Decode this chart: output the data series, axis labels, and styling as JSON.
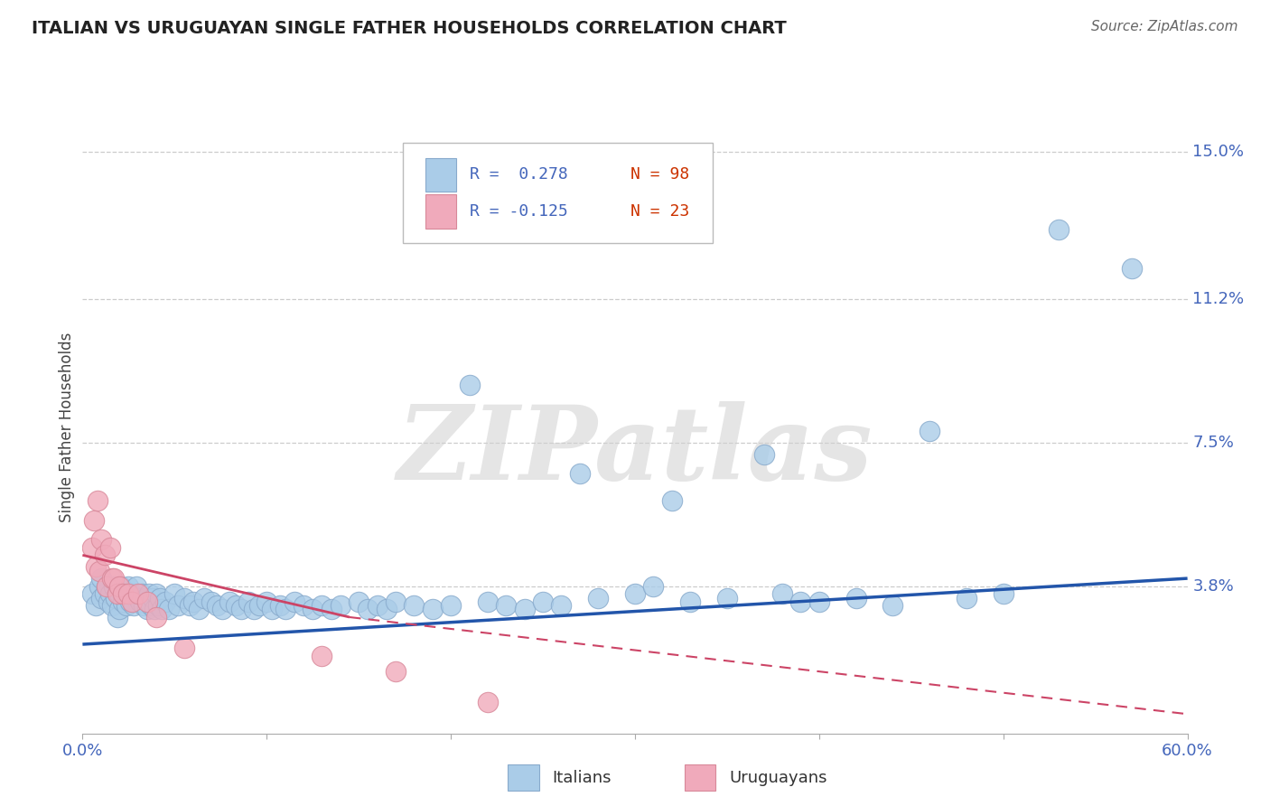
{
  "title": "ITALIAN VS URUGUAYAN SINGLE FATHER HOUSEHOLDS CORRELATION CHART",
  "source": "Source: ZipAtlas.com",
  "ylabel": "Single Father Households",
  "xlim": [
    0.0,
    0.6
  ],
  "ylim": [
    0.0,
    0.158
  ],
  "yticks": [
    0.038,
    0.075,
    0.112,
    0.15
  ],
  "ytick_labels": [
    "3.8%",
    "7.5%",
    "11.2%",
    "15.0%"
  ],
  "xtick_positions": [
    0.0,
    0.1,
    0.2,
    0.3,
    0.4,
    0.5,
    0.6
  ],
  "xtick_labels": [
    "0.0%",
    "",
    "",
    "",
    "",
    "",
    "60.0%"
  ],
  "legend_r_italian": "R =  0.278",
  "legend_n_italian": "N = 98",
  "legend_r_uruguayan": "R = -0.125",
  "legend_n_uruguayan": "N = 23",
  "italian_color": "#aacce8",
  "italian_edge_color": "#88aacc",
  "uruguayan_color": "#f0aabb",
  "uruguayan_edge_color": "#d88899",
  "italian_line_color": "#2255aa",
  "uruguayan_line_color": "#cc4466",
  "watermark_text": "ZIPatlas",
  "background_color": "#ffffff",
  "grid_color": "#cccccc",
  "title_color": "#222222",
  "source_color": "#666666",
  "axis_text_color": "#4466bb",
  "legend_r_color": "#4466bb",
  "legend_n_color": "#cc3300",
  "ylabel_color": "#444444",
  "italian_scatter_x": [
    0.005,
    0.007,
    0.009,
    0.01,
    0.01,
    0.012,
    0.013,
    0.014,
    0.015,
    0.016,
    0.017,
    0.018,
    0.019,
    0.02,
    0.02,
    0.021,
    0.022,
    0.023,
    0.024,
    0.025,
    0.026,
    0.027,
    0.028,
    0.029,
    0.03,
    0.031,
    0.032,
    0.033,
    0.034,
    0.035,
    0.036,
    0.037,
    0.038,
    0.039,
    0.04,
    0.041,
    0.042,
    0.043,
    0.045,
    0.047,
    0.05,
    0.052,
    0.055,
    0.058,
    0.06,
    0.063,
    0.066,
    0.07,
    0.073,
    0.076,
    0.08,
    0.083,
    0.086,
    0.09,
    0.093,
    0.096,
    0.1,
    0.103,
    0.107,
    0.11,
    0.115,
    0.12,
    0.125,
    0.13,
    0.135,
    0.14,
    0.15,
    0.155,
    0.16,
    0.165,
    0.17,
    0.18,
    0.19,
    0.2,
    0.21,
    0.22,
    0.23,
    0.24,
    0.25,
    0.26,
    0.27,
    0.28,
    0.3,
    0.31,
    0.32,
    0.33,
    0.35,
    0.37,
    0.38,
    0.39,
    0.4,
    0.42,
    0.44,
    0.46,
    0.48,
    0.5,
    0.53,
    0.57
  ],
  "italian_scatter_y": [
    0.036,
    0.033,
    0.038,
    0.04,
    0.035,
    0.036,
    0.038,
    0.034,
    0.036,
    0.033,
    0.038,
    0.035,
    0.03,
    0.036,
    0.032,
    0.038,
    0.034,
    0.036,
    0.033,
    0.038,
    0.034,
    0.036,
    0.033,
    0.038,
    0.035,
    0.034,
    0.036,
    0.033,
    0.035,
    0.032,
    0.036,
    0.033,
    0.035,
    0.032,
    0.036,
    0.033,
    0.035,
    0.032,
    0.034,
    0.032,
    0.036,
    0.033,
    0.035,
    0.033,
    0.034,
    0.032,
    0.035,
    0.034,
    0.033,
    0.032,
    0.034,
    0.033,
    0.032,
    0.034,
    0.032,
    0.033,
    0.034,
    0.032,
    0.033,
    0.032,
    0.034,
    0.033,
    0.032,
    0.033,
    0.032,
    0.033,
    0.034,
    0.032,
    0.033,
    0.032,
    0.034,
    0.033,
    0.032,
    0.033,
    0.09,
    0.034,
    0.033,
    0.032,
    0.034,
    0.033,
    0.067,
    0.035,
    0.036,
    0.038,
    0.06,
    0.034,
    0.035,
    0.072,
    0.036,
    0.034,
    0.034,
    0.035,
    0.033,
    0.078,
    0.035,
    0.036,
    0.13,
    0.12
  ],
  "uruguayan_scatter_x": [
    0.005,
    0.006,
    0.007,
    0.008,
    0.009,
    0.01,
    0.012,
    0.013,
    0.015,
    0.016,
    0.017,
    0.019,
    0.02,
    0.022,
    0.025,
    0.027,
    0.03,
    0.035,
    0.04,
    0.055,
    0.13,
    0.17,
    0.22
  ],
  "uruguayan_scatter_y": [
    0.048,
    0.055,
    0.043,
    0.06,
    0.042,
    0.05,
    0.046,
    0.038,
    0.048,
    0.04,
    0.04,
    0.036,
    0.038,
    0.036,
    0.036,
    0.034,
    0.036,
    0.034,
    0.03,
    0.022,
    0.02,
    0.016,
    0.008
  ],
  "italian_trend": [
    0.0,
    0.6,
    0.023,
    0.04
  ],
  "uruguayan_trend_solid": [
    0.0,
    0.145,
    0.046,
    0.03
  ],
  "uruguayan_trend_dashed": [
    0.145,
    0.6,
    0.03,
    0.005
  ]
}
